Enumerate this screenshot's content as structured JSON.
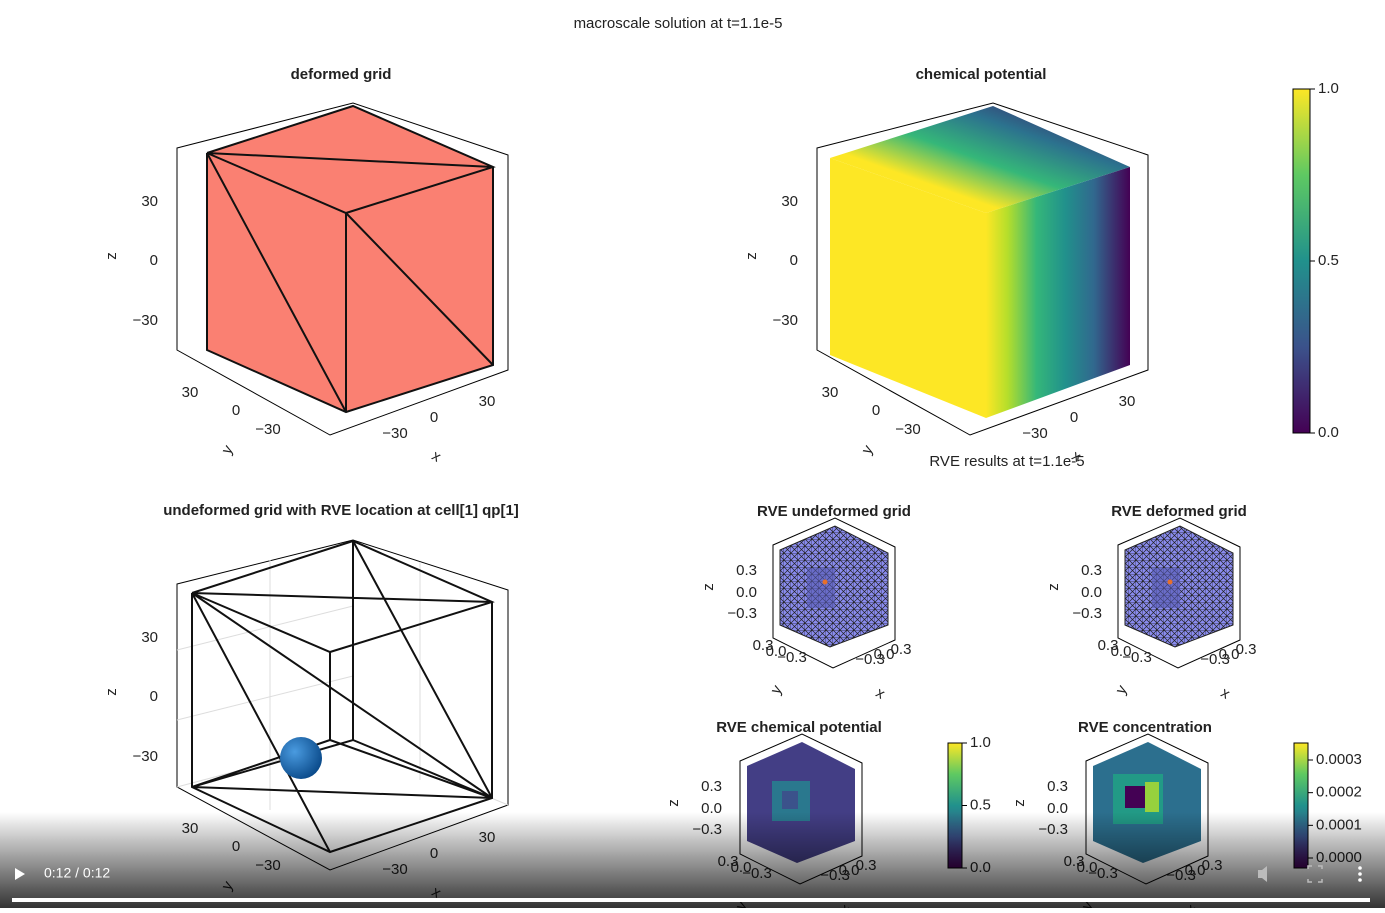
{
  "title": "macroscale solution at t=1.1e-5",
  "subtitle": "RVE results at t=1.1e-5",
  "panels": [
    {
      "title": "deformed grid",
      "axis_labels": {
        "x": "x",
        "y": "y",
        "z": "z"
      },
      "ticks": {
        "z": [
          "30",
          "0",
          "−30"
        ],
        "y": [
          "30",
          "0",
          "−30"
        ],
        "x": [
          "−30",
          "0",
          "30"
        ]
      }
    },
    {
      "title": "chemical potential",
      "axis_labels": {
        "x": "x",
        "y": "y",
        "z": "z"
      },
      "ticks": {
        "z": [
          "30",
          "0",
          "−30"
        ],
        "y": [
          "30",
          "0",
          "−30"
        ],
        "x": [
          "−30",
          "0",
          "30"
        ]
      }
    },
    {
      "title": "undeformed grid with RVE location at cell[1] qp[1]",
      "axis_labels": {
        "x": "x",
        "y": "y",
        "z": "z"
      },
      "ticks": {
        "z": [
          "30",
          "0",
          "−30"
        ],
        "y": [
          "30",
          "0",
          "−30"
        ],
        "x": [
          "−30",
          "0",
          "30"
        ]
      }
    },
    {
      "title": "RVE undeformed grid",
      "axis_labels": {
        "x": "x",
        "y": "y",
        "z": "z"
      },
      "ticks": {
        "z": [
          "0.3",
          "0.0",
          "−0.3"
        ],
        "y": [
          "0.3",
          "0.0",
          "−0.3"
        ],
        "x": [
          "−0.3",
          "0.0",
          "0.3"
        ]
      }
    },
    {
      "title": "RVE deformed grid",
      "axis_labels": {
        "x": "x",
        "y": "y",
        "z": "z"
      },
      "ticks": {
        "z": [
          "0.3",
          "0.0",
          "−0.3"
        ],
        "y": [
          "0.3",
          "0.0",
          "−0.3"
        ],
        "x": [
          "−0.3",
          "0.0",
          "0.3"
        ]
      }
    },
    {
      "title": "RVE chemical potential",
      "axis_labels": {
        "x": "x",
        "y": "y",
        "z": "z"
      },
      "ticks": {
        "z": [
          "0.3",
          "0.0",
          "−0.3"
        ],
        "y": [
          "0.3",
          "0.0",
          "−0.3"
        ],
        "x": [
          "−0.3",
          "0.0",
          "0.3"
        ]
      }
    },
    {
      "title": "RVE concentration",
      "axis_labels": {
        "x": "x",
        "y": "y",
        "z": "z"
      },
      "ticks": {
        "z": [
          "0.3",
          "0.0",
          "−0.3"
        ],
        "y": [
          "0.3",
          "0.0",
          "−0.3"
        ],
        "x": [
          "−0.3",
          "0.0",
          "0.3"
        ]
      }
    }
  ],
  "colorbars": [
    {
      "ticks": [
        "1.0",
        "0.5",
        "0.0"
      ]
    },
    {
      "ticks": [
        "1.0",
        "0.5",
        "0.0"
      ]
    },
    {
      "ticks": [
        "0.0003",
        "0.0002",
        "0.0001",
        "0.0000"
      ]
    }
  ],
  "player": {
    "time": "0:12 / 0:12"
  }
}
